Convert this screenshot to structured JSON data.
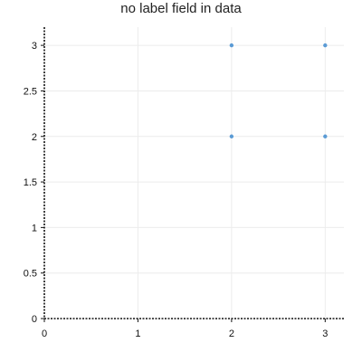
{
  "chart_data": {
    "type": "scatter",
    "title": "no label field in data",
    "xlabel": "",
    "ylabel": "",
    "xlim": [
      0,
      3.2
    ],
    "ylim": [
      0,
      3.2
    ],
    "xticks": [
      0,
      1,
      2,
      3
    ],
    "yticks": [
      0,
      0.5,
      1,
      1.5,
      2,
      2.5,
      3
    ],
    "grid": true,
    "legend": "none",
    "series": [
      {
        "color": "#5b9bd5",
        "points": [
          {
            "x": 2,
            "y": 3
          },
          {
            "x": 3,
            "y": 3
          },
          {
            "x": 2,
            "y": 2
          },
          {
            "x": 3,
            "y": 2
          }
        ]
      }
    ]
  }
}
